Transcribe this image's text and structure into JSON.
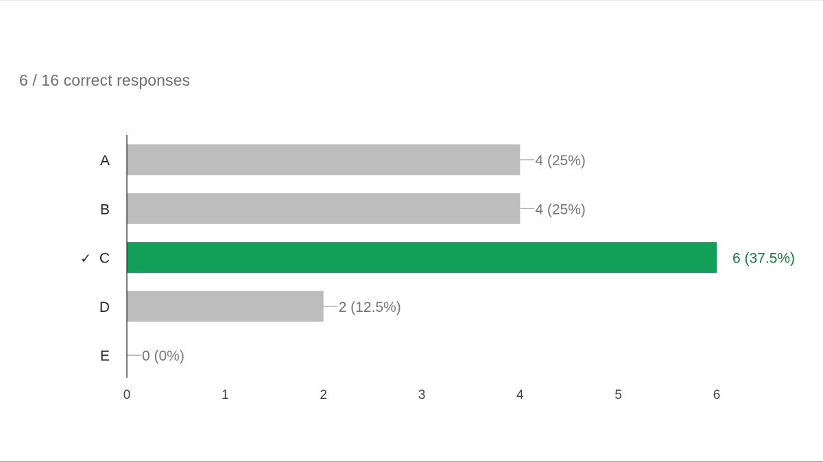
{
  "summary": {
    "text": "6 / 16 correct responses"
  },
  "colors": {
    "bar_default": "#bdbdbd",
    "bar_correct": "#12a058",
    "label_default": "#757575",
    "label_correct": "#137a43",
    "axis": "#333333",
    "category_text": "#222222",
    "tick_text": "#444444"
  },
  "chart_data": {
    "type": "bar",
    "orientation": "horizontal",
    "categories": [
      "A",
      "B",
      "C",
      "D",
      "E"
    ],
    "values": [
      4,
      4,
      6,
      2,
      0
    ],
    "value_labels": [
      "4 (25%)",
      "4 (25%)",
      "6 (37.5%)",
      "2 (12.5%)",
      "0 (0%)"
    ],
    "correct": [
      false,
      false,
      true,
      false,
      false
    ],
    "correct_mark": "✓",
    "x_ticks": [
      "0",
      "1",
      "2",
      "3",
      "4",
      "5",
      "6"
    ],
    "xlim": [
      0,
      6
    ]
  }
}
